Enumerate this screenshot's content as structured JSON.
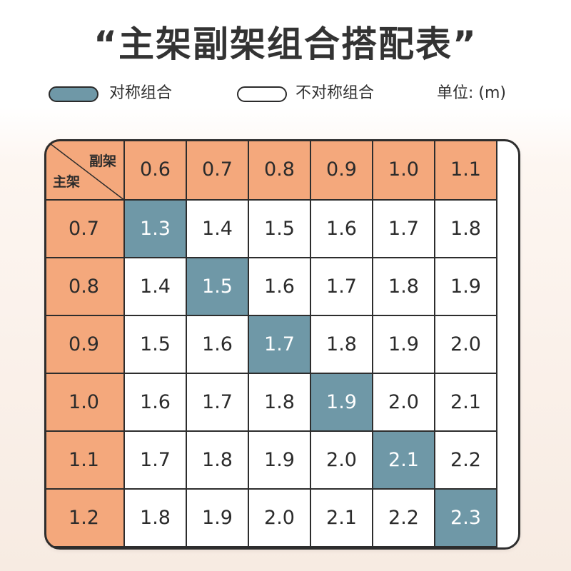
{
  "title": "“主架副架组合搭配表”",
  "legend": {
    "symmetric_label": "对称组合",
    "asymmetric_label": "不对称组合",
    "unit_label": "单位: (m)"
  },
  "colors": {
    "header_orange": "#f4a87c",
    "symmetric_blue": "#6f98a7"
  },
  "table": {
    "corner": {
      "column_axis_label": "副架",
      "row_axis_label": "主架"
    },
    "column_headers": [
      "0.6",
      "0.7",
      "0.8",
      "0.9",
      "1.0",
      "1.1"
    ],
    "rows": [
      {
        "header": "0.7",
        "cells": [
          "1.3",
          "1.4",
          "1.5",
          "1.6",
          "1.7",
          "1.8"
        ],
        "symmetric_index": 0
      },
      {
        "header": "0.8",
        "cells": [
          "1.4",
          "1.5",
          "1.6",
          "1.7",
          "1.8",
          "1.9"
        ],
        "symmetric_index": 1
      },
      {
        "header": "0.9",
        "cells": [
          "1.5",
          "1.6",
          "1.7",
          "1.8",
          "1.9",
          "2.0"
        ],
        "symmetric_index": 2
      },
      {
        "header": "1.0",
        "cells": [
          "1.6",
          "1.7",
          "1.8",
          "1.9",
          "2.0",
          "2.1"
        ],
        "symmetric_index": 3
      },
      {
        "header": "1.1",
        "cells": [
          "1.7",
          "1.8",
          "1.9",
          "2.0",
          "2.1",
          "2.2"
        ],
        "symmetric_index": 4
      },
      {
        "header": "1.2",
        "cells": [
          "1.8",
          "1.9",
          "2.0",
          "2.1",
          "2.2",
          "2.3"
        ],
        "symmetric_index": 5
      }
    ]
  }
}
